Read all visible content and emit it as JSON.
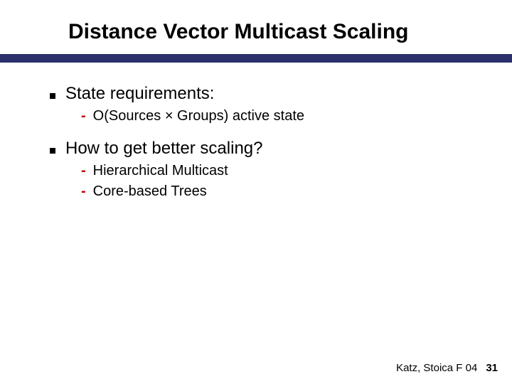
{
  "title": "Distance Vector Multicast Scaling",
  "divider_color": "#2b2f6a",
  "title_fontsize": 30,
  "bullet_fontsize": 24,
  "sub_fontsize": 20,
  "dash_color": "#c00000",
  "bullets": [
    {
      "text": "State requirements:",
      "subs": [
        "O(Sources × Groups) active state"
      ]
    },
    {
      "text": "How to get better scaling?",
      "subs": [
        "Hierarchical Multicast",
        "Core-based Trees"
      ]
    }
  ],
  "footer": {
    "credit": "Katz, Stoica F 04",
    "page": "31"
  }
}
